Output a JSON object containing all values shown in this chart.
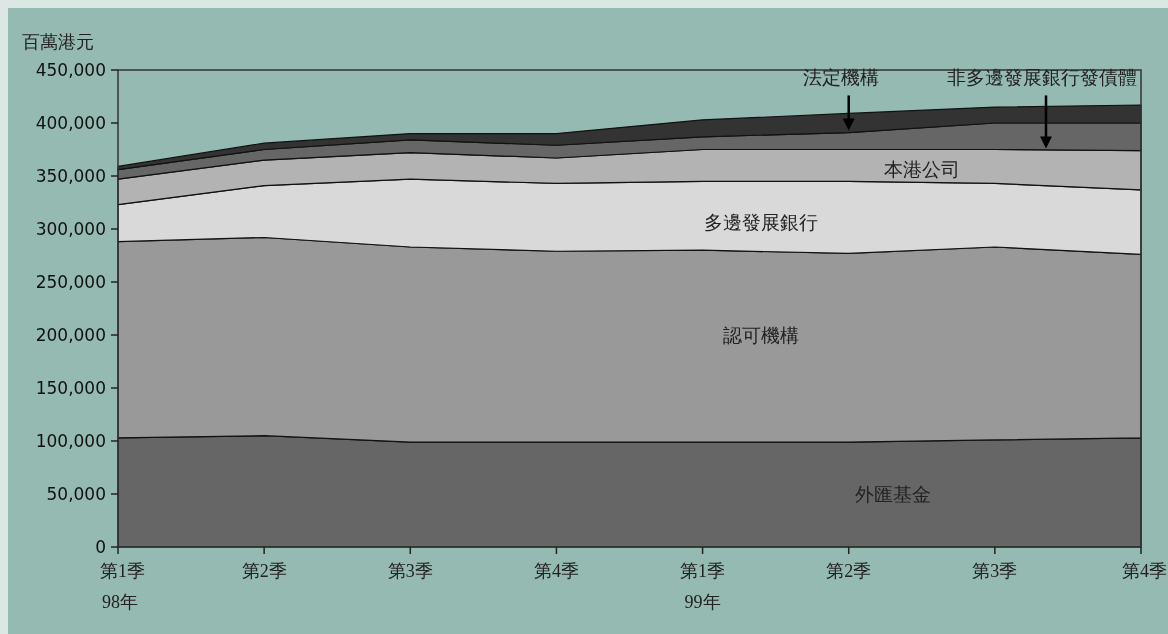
{
  "chart_data": {
    "type": "area",
    "stacked": true,
    "ylabel": "百萬港元",
    "categories": [
      "第1季\n98年",
      "第2季",
      "第3季",
      "第4季",
      "第1季\n99年",
      "第2季",
      "第3季",
      "第4季"
    ],
    "ylim": [
      0,
      450000
    ],
    "yticks": [
      0,
      {
        "value": 50000,
        "label": "50,000"
      },
      {
        "value": 100000,
        "label": "100,000"
      },
      {
        "value": 150000,
        "label": "150,000"
      },
      {
        "value": 200000,
        "label": "200,000"
      },
      {
        "value": 250000,
        "label": "250,000"
      },
      {
        "value": 300000,
        "label": "300,000"
      },
      {
        "value": 350000,
        "label": "350,000"
      },
      {
        "value": 400000,
        "label": "400,000"
      },
      {
        "value": 450000,
        "label": "450,000"
      }
    ],
    "series": [
      {
        "name": "外匯基金",
        "color": "#666666",
        "values": [
          103000,
          105000,
          99000,
          99000,
          99000,
          99000,
          101000,
          103000
        ]
      },
      {
        "name": "認可機構",
        "color": "#999999",
        "values": [
          185000,
          187000,
          184000,
          180000,
          181000,
          178000,
          182000,
          173000
        ]
      },
      {
        "name": "多邊發展銀行",
        "color": "#d9d9d9",
        "values": [
          35000,
          49000,
          64000,
          64000,
          65000,
          68000,
          60000,
          61000
        ]
      },
      {
        "name": "本港公司",
        "color": "#b3b3b3",
        "values": [
          24000,
          24000,
          25000,
          24000,
          30000,
          30000,
          32000,
          37000
        ]
      },
      {
        "name": "非多邊發展銀行發債體",
        "color": "#666666",
        "values": [
          9000,
          10000,
          12000,
          12000,
          12000,
          16000,
          25000,
          26000
        ]
      },
      {
        "name": "法定機構",
        "color": "#333333",
        "values": [
          3000,
          6000,
          6000,
          11000,
          16000,
          18000,
          15000,
          17000
        ]
      }
    ]
  }
}
